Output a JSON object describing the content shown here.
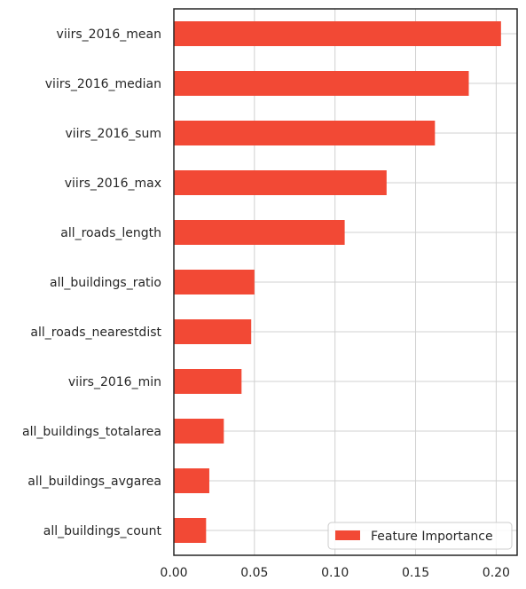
{
  "chart_data": {
    "type": "bar",
    "orientation": "horizontal",
    "categories": [
      "viirs_2016_mean",
      "viirs_2016_median",
      "viirs_2016_sum",
      "viirs_2016_max",
      "all_roads_length",
      "all_buildings_ratio",
      "all_roads_nearestdist",
      "viirs_2016_min",
      "all_buildings_totalarea",
      "all_buildings_avgarea",
      "all_buildings_count"
    ],
    "series": [
      {
        "name": "Feature Importance",
        "values": [
          0.203,
          0.183,
          0.162,
          0.132,
          0.106,
          0.05,
          0.048,
          0.042,
          0.031,
          0.022,
          0.02
        ],
        "color": "#f24935"
      }
    ],
    "xlim": [
      0,
      0.213
    ],
    "xticks": [
      0.0,
      0.05,
      0.1,
      0.15,
      0.2
    ],
    "xtick_labels": [
      "0.00",
      "0.05",
      "0.10",
      "0.15",
      "0.20"
    ],
    "grid": true,
    "legend_position": "lower-right",
    "title": "",
    "xlabel": "",
    "ylabel": ""
  }
}
